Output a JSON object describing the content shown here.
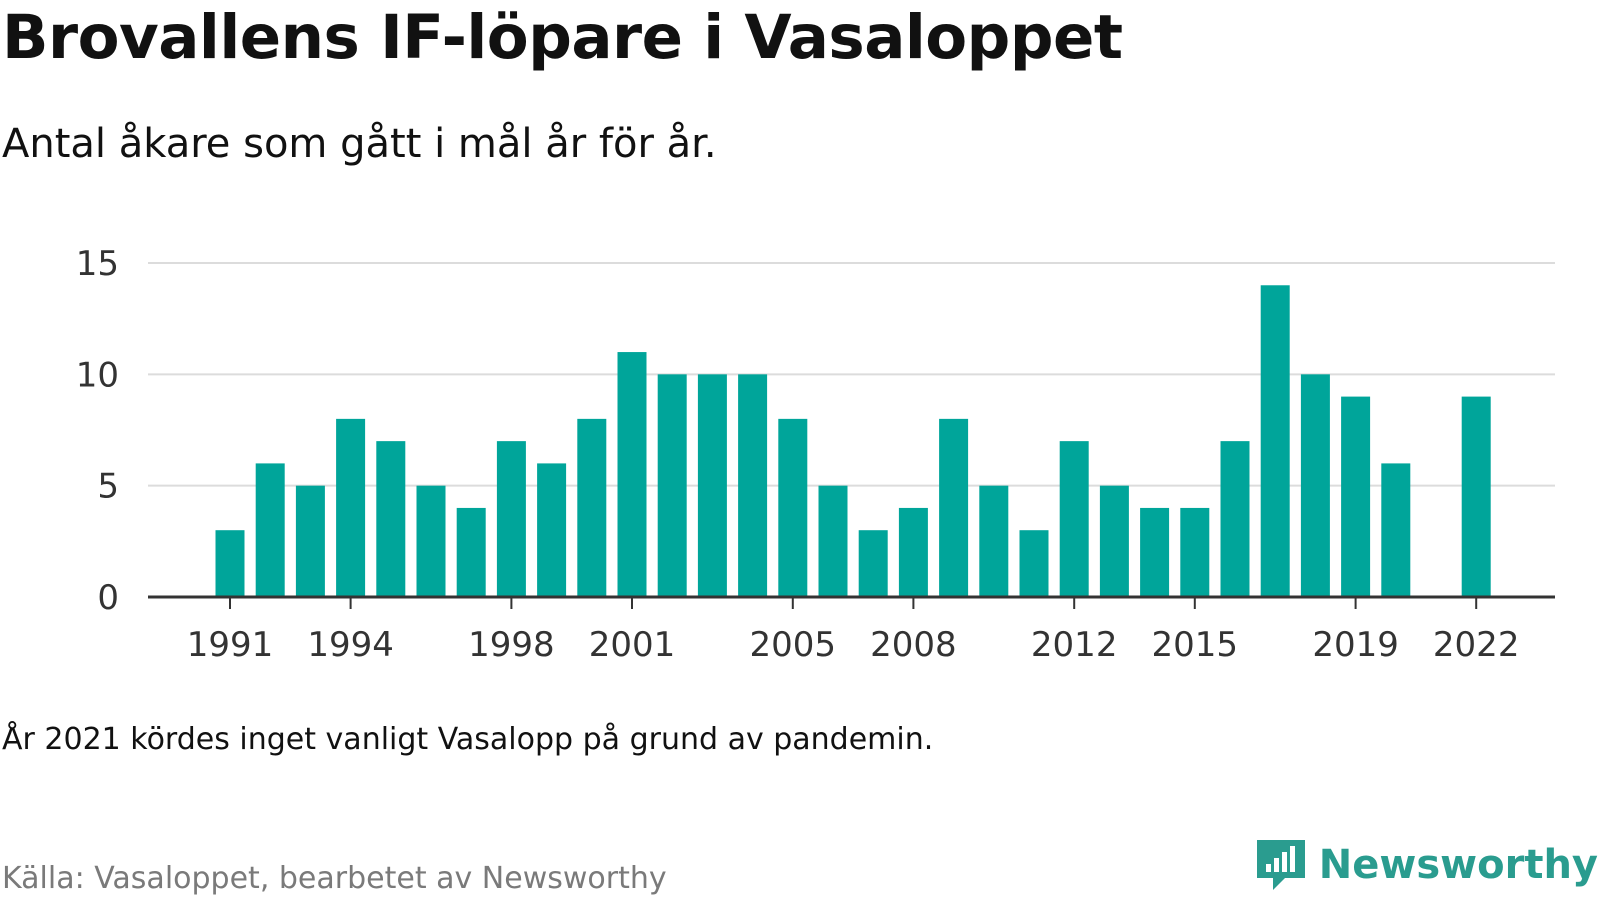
{
  "title": "Brovallens IF-löpare i Vasaloppet",
  "subtitle": "Antal åkare som gått i mål år för år.",
  "note": "År 2021 kördes inget vanligt Vasalopp på grund av pandemin.",
  "source": "Källa: Vasaloppet, bearbetet av Newsworthy",
  "brand": {
    "name": "Newsworthy",
    "logo_icon": "bar-chart-speech-bubble-icon",
    "color": "#2a9c8f"
  },
  "colors": {
    "bar": "#00a59a",
    "grid": "#dcdcdc",
    "axis": "#333333"
  },
  "chart_data": {
    "type": "bar",
    "x": [
      1991,
      1992,
      1993,
      1994,
      1995,
      1996,
      1997,
      1998,
      1999,
      2000,
      2001,
      2002,
      2003,
      2004,
      2005,
      2006,
      2007,
      2008,
      2009,
      2010,
      2011,
      2012,
      2013,
      2014,
      2015,
      2016,
      2017,
      2018,
      2019,
      2020,
      2021,
      2022
    ],
    "values": [
      3,
      6,
      5,
      8,
      7,
      5,
      4,
      7,
      6,
      8,
      11,
      10,
      10,
      10,
      8,
      5,
      3,
      4,
      8,
      5,
      3,
      7,
      5,
      4,
      4,
      7,
      14,
      10,
      9,
      6,
      null,
      9
    ],
    "x_tick_labels": [
      "1991",
      "1994",
      "1998",
      "2001",
      "2005",
      "2008",
      "2012",
      "2015",
      "2019",
      "2022"
    ],
    "y_ticks": [
      0,
      5,
      10,
      15
    ],
    "ylim": [
      0,
      15
    ],
    "grid": true
  }
}
